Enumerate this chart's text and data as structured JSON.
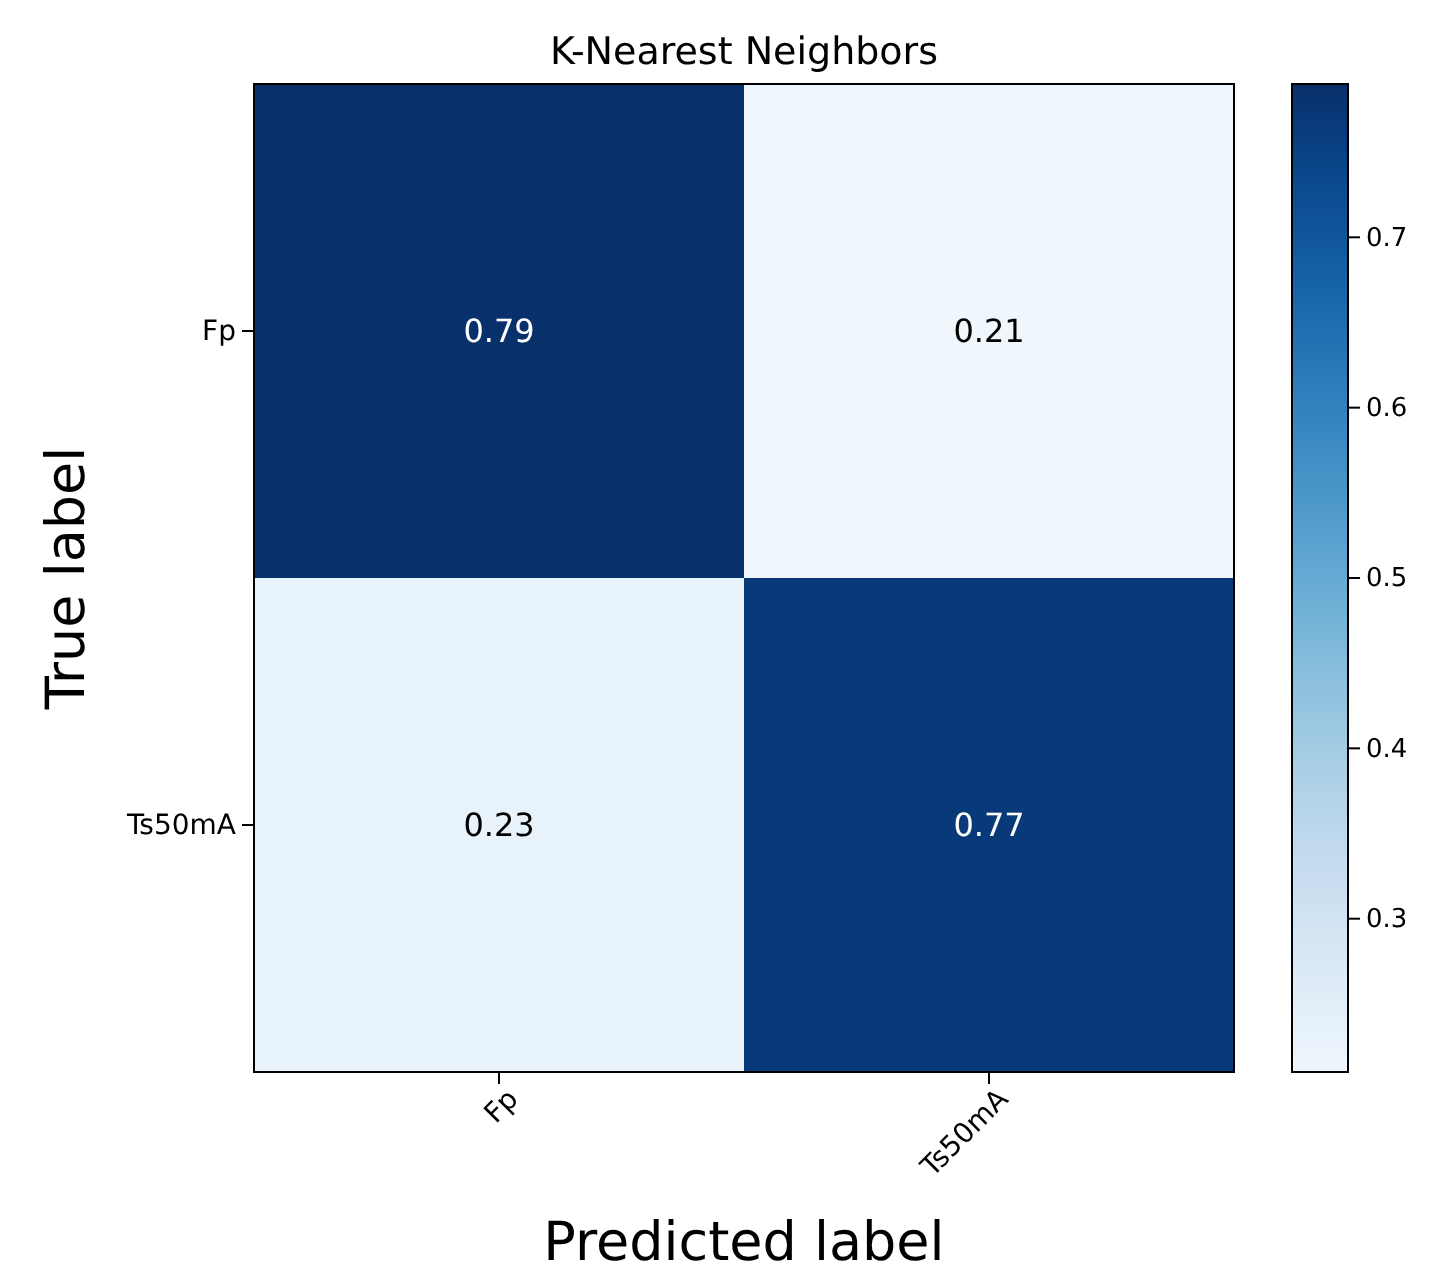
{
  "chart_data": {
    "type": "heatmap",
    "title": "K-Nearest Neighbors",
    "xlabel": "Predicted label",
    "ylabel": "True label",
    "categories": [
      "Fp",
      "Ts50mA"
    ],
    "y_categories": [
      "Fp",
      "Ts50mA"
    ],
    "cells": [
      [
        0.79,
        0.21
      ],
      [
        0.23,
        0.77
      ]
    ],
    "data_labels": true,
    "clim": [
      0.21,
      0.79
    ],
    "cticks": [
      0.3,
      0.4,
      0.5,
      0.6,
      0.7
    ]
  }
}
